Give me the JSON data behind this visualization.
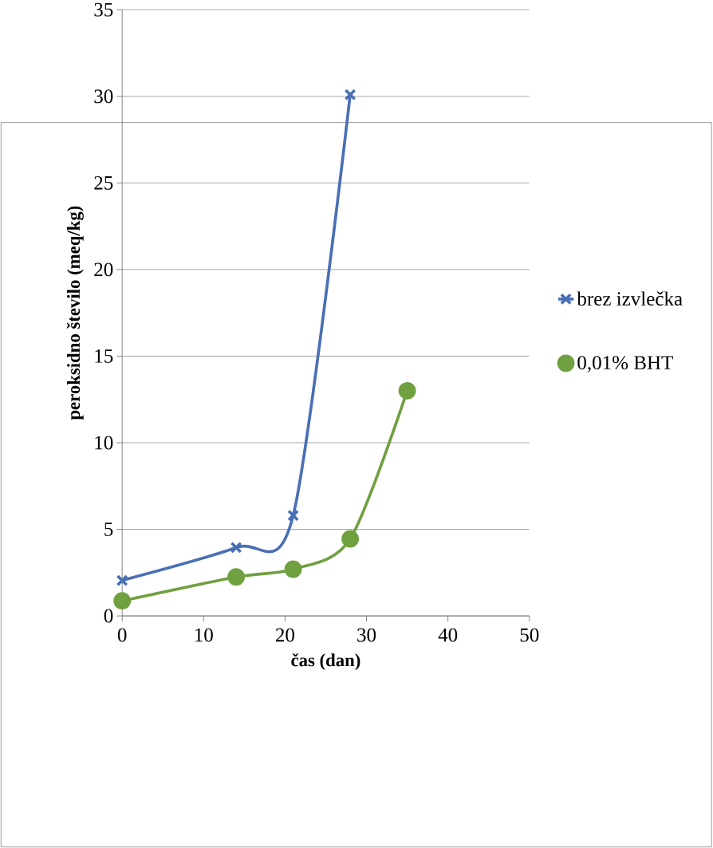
{
  "chart_data": {
    "type": "line",
    "xlabel": "čas (dan)",
    "ylabel": "peroksidno število (meq/kg)",
    "series": [
      {
        "name": "brez izvlečka",
        "color": "#4a6fb5",
        "marker": "cross",
        "x": [
          0,
          14,
          21,
          28
        ],
        "values": [
          2.05,
          3.95,
          5.8,
          30.1
        ]
      },
      {
        "name": "0,01% BHT",
        "color": "#70a040",
        "marker": "circle",
        "x": [
          0,
          14,
          21,
          28,
          35
        ],
        "values": [
          0.87,
          2.25,
          2.7,
          4.45,
          13.0
        ]
      }
    ],
    "xlim": [
      0,
      50
    ],
    "ylim": [
      0,
      35
    ],
    "xticks": [
      0,
      10,
      20,
      30,
      40,
      50
    ],
    "yticks": [
      0,
      5,
      10,
      15,
      20,
      25,
      30,
      35
    ],
    "grid": "y",
    "legend": "right"
  }
}
